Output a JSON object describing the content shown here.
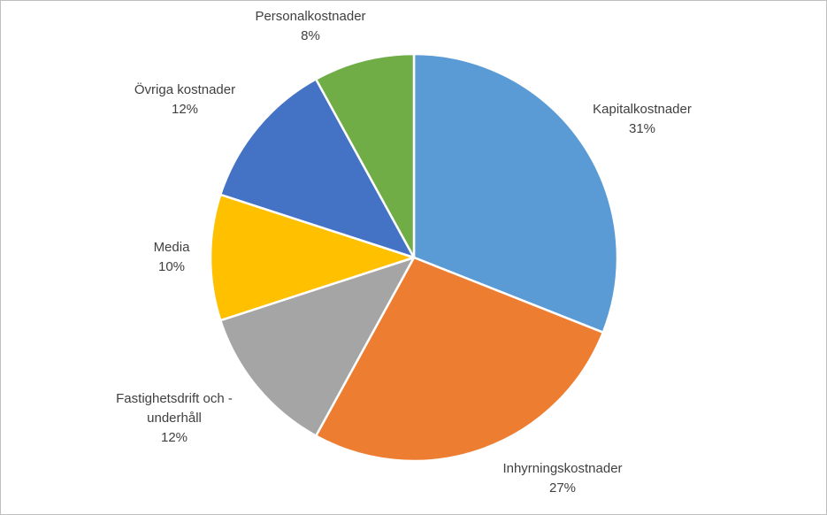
{
  "chart_data": {
    "type": "pie",
    "start_angle_deg": 0,
    "direction": "clockwise",
    "slices": [
      {
        "name": "Kapitalkostnader",
        "value": 31,
        "value_label": "31%",
        "color": "#5b9bd5"
      },
      {
        "name": "Inhyrningskostnader",
        "value": 27,
        "value_label": "27%",
        "color": "#ed7d31"
      },
      {
        "name": "Fastighetsdrift och - underhåll",
        "name_lines": [
          "Fastighetsdrift och -",
          "underhåll"
        ],
        "value": 12,
        "value_label": "12%",
        "color": "#a5a5a5"
      },
      {
        "name": "Media",
        "value": 10,
        "value_label": "10%",
        "color": "#ffc000"
      },
      {
        "name": "Övriga kostnader",
        "value": 12,
        "value_label": "12%",
        "color": "#4472c4"
      },
      {
        "name": "Personalkostnader",
        "value": 8,
        "value_label": "8%",
        "color": "#70ad47"
      }
    ],
    "slice_border_color": "#ffffff",
    "label_color": "#404040",
    "legend": "none",
    "title": ""
  }
}
